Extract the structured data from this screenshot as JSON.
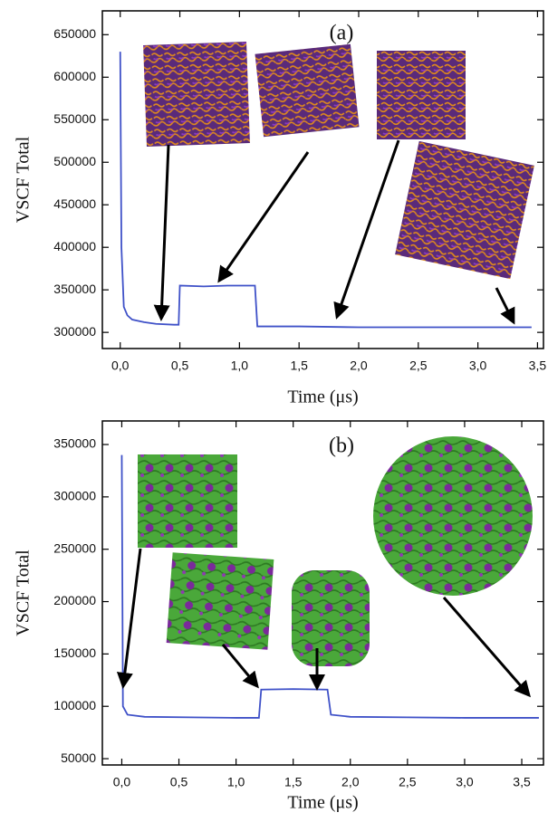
{
  "chart_data": [
    {
      "type": "line",
      "annotation": "(a)",
      "x_label": "Time (μs)",
      "y_label": "VSCF Total",
      "color": "#3f51c8",
      "x": [
        0,
        0.01,
        0.03,
        0.06,
        0.1,
        0.2,
        0.3,
        0.45,
        0.49,
        0.5,
        0.7,
        0.9,
        1.1,
        1.13,
        1.15,
        1.5,
        2.0,
        2.5,
        3.0,
        3.45
      ],
      "values": [
        630000,
        400000,
        330000,
        320000,
        315000,
        312000,
        310000,
        309000,
        309000,
        355000,
        354000,
        355000,
        355000,
        355000,
        307000,
        307000,
        306000,
        306000,
        306000,
        306000
      ],
      "xlim": [
        -0.15,
        3.55
      ],
      "ylim": [
        281000,
        678000
      ],
      "xticks": [
        {
          "value": 0,
          "label": "0,0"
        },
        {
          "value": 0.5,
          "label": "0,5"
        },
        {
          "value": 1,
          "label": "1,0"
        },
        {
          "value": 1.5,
          "label": "1,5"
        },
        {
          "value": 2,
          "label": "2,0"
        },
        {
          "value": 2.5,
          "label": "2,5"
        },
        {
          "value": 3,
          "label": "3,0"
        },
        {
          "value": 3.5,
          "label": "3,5"
        }
      ],
      "yticks": [
        300000,
        350000,
        400000,
        450000,
        500000,
        550000,
        600000,
        650000
      ]
    },
    {
      "type": "line",
      "annotation": "(b)",
      "x_label": "Time (μs)",
      "y_label": "VSCF Total",
      "color": "#3f51c8",
      "x": [
        0,
        0.01,
        0.05,
        0.2,
        0.6,
        1.0,
        1.2,
        1.22,
        1.5,
        1.8,
        1.83,
        2.0,
        2.5,
        3.0,
        3.65
      ],
      "values": [
        340000,
        100000,
        92000,
        90000,
        89500,
        89000,
        89000,
        116000,
        116500,
        116000,
        92000,
        90000,
        89500,
        89000,
        89000
      ],
      "xlim": [
        -0.17,
        3.69
      ],
      "ylim": [
        44000,
        372500
      ],
      "xticks": [
        {
          "value": 0,
          "label": "0,0"
        },
        {
          "value": 0.5,
          "label": "0,5"
        },
        {
          "value": 1,
          "label": "1,0"
        },
        {
          "value": 1.5,
          "label": "1,5"
        },
        {
          "value": 2,
          "label": "2,0"
        },
        {
          "value": 2.5,
          "label": "2,5"
        },
        {
          "value": 3,
          "label": "3,0"
        },
        {
          "value": 3.5,
          "label": "3,5"
        }
      ],
      "yticks": [
        50000,
        100000,
        150000,
        200000,
        250000,
        300000,
        350000
      ]
    }
  ]
}
